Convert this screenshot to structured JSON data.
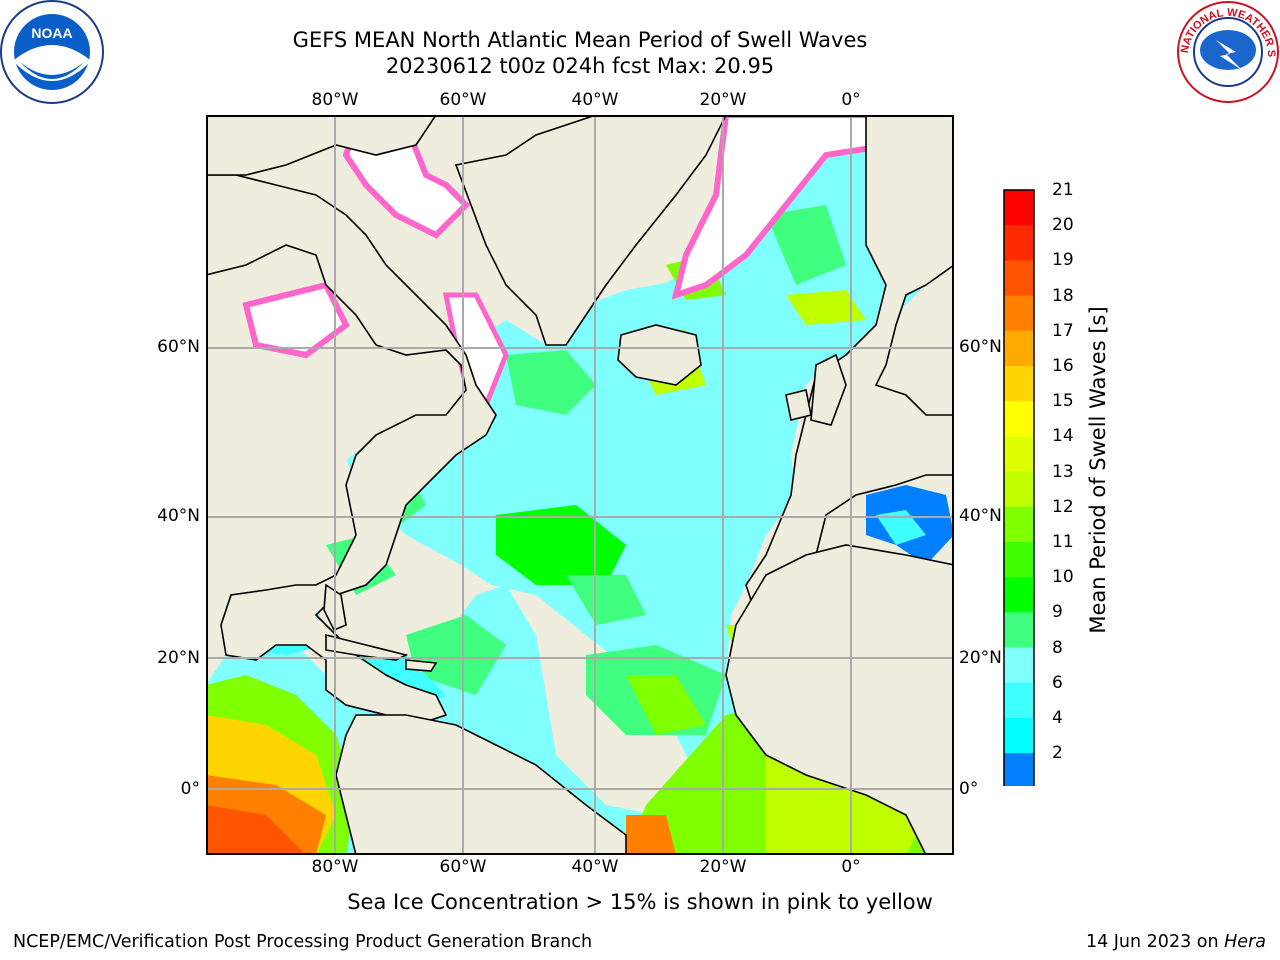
{
  "title": {
    "line1": "GEFS MEAN North Atlantic Mean Period of Swell Waves",
    "line2": "20230612 t00z 024h fcst   Max: 20.95"
  },
  "logos": {
    "noaa": {
      "name": "noaa-logo",
      "text": "NOAA"
    },
    "nws": {
      "name": "nws-logo",
      "text": "NATIONAL WEATHER SERVICE"
    }
  },
  "axes": {
    "lon_ticks": [
      "80°W",
      "60°W",
      "40°W",
      "20°W",
      "0°"
    ],
    "lat_ticks": [
      "60°N",
      "40°N",
      "20°N",
      "0°"
    ]
  },
  "colorbar": {
    "label": "Mean Period of Swell Waves [s]",
    "ticks": [
      "21",
      "20",
      "19",
      "18",
      "17",
      "16",
      "15",
      "14",
      "13",
      "12",
      "11",
      "10",
      "9",
      "8",
      "6",
      "4",
      "2"
    ],
    "colors": [
      "#ff0000",
      "#ff2a00",
      "#ff5500",
      "#ff8000",
      "#ffaa00",
      "#ffd500",
      "#ffff00",
      "#dfff00",
      "#bfff00",
      "#80ff00",
      "#40ff00",
      "#00ff00",
      "#40ff80",
      "#80ffff",
      "#40ffff",
      "#00ffff",
      "#0080ff"
    ],
    "extend_color": "#0000ff"
  },
  "footnote": "Sea Ice Concentration > 15% is shown in pink to yellow",
  "footer": {
    "left": "NCEP/EMC/Verification Post Processing Product Generation Branch",
    "right_prefix": "14 Jun 2023 on ",
    "right_host": "Hera"
  }
}
